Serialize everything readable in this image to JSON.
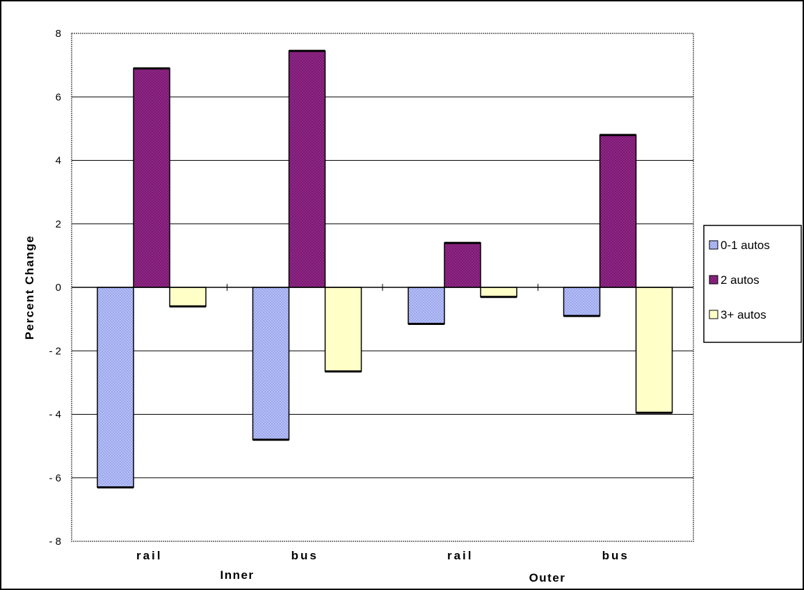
{
  "colors": {
    "series_0_1": "#9aa6ee",
    "series_2": "#7b1872",
    "series_3p": "#ffffc8",
    "plot_border": "#808080",
    "grid": "#000000"
  },
  "chart_data": {
    "type": "bar",
    "categories": [
      "rail",
      "bus",
      "rail",
      "bus"
    ],
    "groups": [
      {
        "label": "Inner",
        "categories": [
          "rail",
          "bus"
        ]
      },
      {
        "label": "Outer",
        "categories": [
          "rail",
          "bus"
        ]
      }
    ],
    "series": [
      {
        "name": "0-1  autos",
        "values": [
          -6.3,
          -4.8,
          -1.15,
          -0.9
        ]
      },
      {
        "name": "2  autos",
        "values": [
          6.9,
          7.45,
          1.4,
          4.8
        ]
      },
      {
        "name": "3+  autos",
        "values": [
          -0.6,
          -2.65,
          -0.3,
          -3.95
        ]
      }
    ],
    "title": "",
    "xlabel": "",
    "ylabel": "Percent  Change",
    "ylim": [
      -8,
      8
    ],
    "yticks": [
      8,
      6,
      4,
      2,
      0,
      -2,
      -4,
      -6,
      -8
    ],
    "ytick_labels": [
      "8",
      "6",
      "4",
      "2",
      "0",
      "- 2",
      "- 4",
      "- 6",
      "- 8"
    ],
    "grid": true,
    "legend_position": "right"
  }
}
